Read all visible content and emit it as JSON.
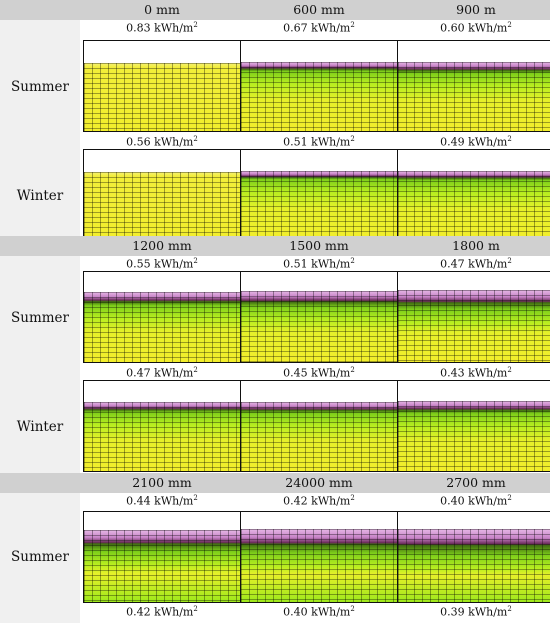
{
  "unit_sup": "2",
  "sections": [
    {
      "depths": [
        "0 mm",
        "600 mm",
        "900 m"
      ],
      "rows": [
        {
          "season": "Summer",
          "values": [
            "0.83 kWh/m",
            "0.67 kWh/m",
            "0.60 kWh/m"
          ],
          "bands": [
            0,
            0.15,
            0.25
          ]
        },
        {
          "season": "Winter",
          "values": [
            "0.56 kWh/m",
            "0.51 kWh/m",
            "0.49 kWh/m"
          ],
          "bands": [
            0,
            0.1,
            0.15
          ]
        }
      ]
    },
    {
      "depths": [
        "1200 mm",
        "1500 mm",
        "1800 m"
      ],
      "rows": [
        {
          "season": "Summer",
          "values": [
            "0.55 kWh/m",
            "0.51 kWh/m",
            "0.47 kWh/m"
          ],
          "bands": [
            0.35,
            0.45,
            0.6
          ]
        },
        {
          "season": "Winter",
          "values": [
            "0.47 kWh/m",
            "0.45 kWh/m",
            "0.43 kWh/m"
          ],
          "bands": [
            0.2,
            0.25,
            0.3
          ]
        }
      ]
    },
    {
      "depths": [
        "2100 mm",
        "24000 mm",
        "2700 mm"
      ],
      "rows": [
        {
          "season": "Summer",
          "values": [
            "0.44 kWh/m",
            "0.42 kWh/m",
            "0.40 kWh/m"
          ],
          "bands": [
            0.7,
            0.8,
            0.9
          ]
        }
      ],
      "trailing_values": [
        "0.42 kWh/m",
        "0.40 kWh/m",
        "0.39 kWh/m"
      ]
    }
  ]
}
